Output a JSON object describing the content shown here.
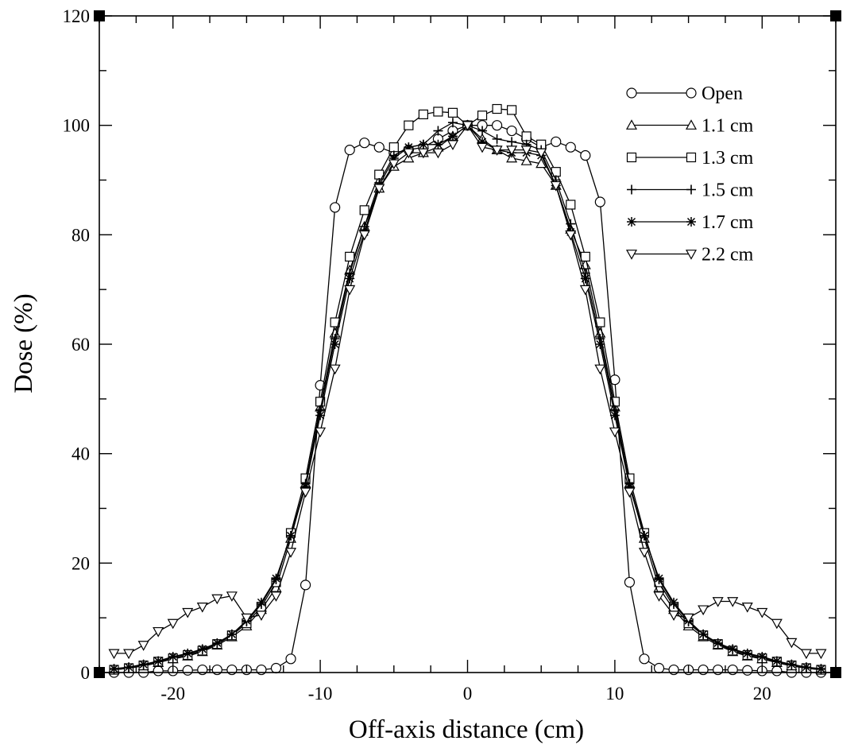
{
  "chart_data": {
    "type": "line",
    "title": "",
    "xlabel": "Off-axis distance (cm)",
    "ylabel": "Dose (%)",
    "xlim": [
      -25,
      25
    ],
    "ylim": [
      0,
      120
    ],
    "x_ticks": [
      -20,
      -10,
      0,
      10,
      20
    ],
    "x_tick_labels": [
      "-20",
      "-10",
      "0",
      "10",
      "20"
    ],
    "y_ticks": [
      0,
      20,
      40,
      60,
      80,
      100,
      120
    ],
    "y_tick_labels": [
      "0",
      "20",
      "40",
      "60",
      "80",
      "100",
      "120"
    ],
    "grid": false,
    "legend_position": "top-right",
    "series": [
      {
        "name": "Open",
        "marker": "circle",
        "x": [
          -24,
          -23,
          -22,
          -21,
          -20,
          -19,
          -18,
          -17,
          -16,
          -15,
          -14,
          -13,
          -12,
          -11,
          -10,
          -9,
          -8,
          -7,
          -6,
          -5,
          -4,
          -3,
          -2,
          -1,
          0,
          1,
          2,
          3,
          4,
          5,
          6,
          7,
          8,
          9,
          10,
          11,
          12,
          13,
          14,
          15,
          16,
          17,
          18,
          19,
          20,
          21,
          22,
          23,
          24
        ],
        "y": [
          0,
          0,
          0,
          0.3,
          0.3,
          0.4,
          0.5,
          0.5,
          0.5,
          0.5,
          0.5,
          0.8,
          2.5,
          16,
          52.5,
          85,
          95.5,
          96.8,
          96,
          95,
          95.5,
          96,
          97.5,
          99,
          100,
          100,
          100,
          99,
          97.5,
          96,
          97,
          96,
          94.5,
          86,
          53.5,
          16.5,
          2.5,
          0.8,
          0.5,
          0.5,
          0.5,
          0.5,
          0.5,
          0.4,
          0.3,
          0.3,
          0,
          0,
          0
        ]
      },
      {
        "name": "1.1 cm",
        "marker": "triangle-up",
        "x": [
          -24,
          -23,
          -22,
          -21,
          -20,
          -19,
          -18,
          -17,
          -16,
          -15,
          -14,
          -13,
          -12,
          -11,
          -10,
          -9,
          -8,
          -7,
          -6,
          -5,
          -4,
          -3,
          -2,
          -1,
          0,
          1,
          2,
          3,
          4,
          5,
          6,
          7,
          8,
          9,
          10,
          11,
          12,
          13,
          14,
          15,
          16,
          17,
          18,
          19,
          20,
          21,
          22,
          23,
          24
        ],
        "y": [
          0.5,
          0.8,
          1.2,
          1.8,
          2.5,
          3,
          3.8,
          5,
          6.5,
          8.5,
          11.5,
          15.5,
          24.5,
          34.5,
          48.5,
          62,
          73.5,
          81.5,
          88.5,
          92.5,
          94,
          95,
          96,
          98,
          100,
          97.5,
          95.5,
          94,
          93.5,
          93,
          89,
          81,
          74.5,
          62,
          48.5,
          34.5,
          24.5,
          15.5,
          11.5,
          8.5,
          6.5,
          5,
          3.8,
          3,
          2.5,
          1.8,
          1.2,
          0.8,
          0.5
        ]
      },
      {
        "name": "1.3 cm",
        "marker": "square",
        "x": [
          -24,
          -23,
          -22,
          -21,
          -20,
          -19,
          -18,
          -17,
          -16,
          -15,
          -14,
          -13,
          -12,
          -11,
          -10,
          -9,
          -8,
          -7,
          -6,
          -5,
          -4,
          -3,
          -2,
          -1,
          0,
          1,
          2,
          3,
          4,
          5,
          6,
          7,
          8,
          9,
          10,
          11,
          12,
          13,
          14,
          15,
          16,
          17,
          18,
          19,
          20,
          21,
          22,
          23,
          24
        ],
        "y": [
          0.5,
          0.8,
          1.3,
          2,
          2.6,
          3.2,
          4,
          5.2,
          6.8,
          9,
          12,
          16.5,
          25.5,
          35.5,
          49.5,
          64,
          76,
          84.5,
          91,
          96,
          100,
          102,
          102.5,
          102.3,
          100,
          101.8,
          103,
          102.8,
          98,
          96.5,
          91.5,
          85.5,
          76,
          64,
          49.5,
          35.5,
          25.5,
          16.5,
          12,
          9,
          6.8,
          5.2,
          4,
          3.2,
          2.6,
          2,
          1.3,
          0.8,
          0.5
        ]
      },
      {
        "name": "1.5 cm",
        "marker": "plus",
        "x": [
          -24,
          -23,
          -22,
          -21,
          -20,
          -19,
          -18,
          -17,
          -16,
          -15,
          -14,
          -13,
          -12,
          -11,
          -10,
          -9,
          -8,
          -7,
          -6,
          -5,
          -4,
          -3,
          -2,
          -1,
          0,
          1,
          2,
          3,
          4,
          5,
          6,
          7,
          8,
          9,
          10,
          11,
          12,
          13,
          14,
          15,
          16,
          17,
          18,
          19,
          20,
          21,
          22,
          23,
          24
        ],
        "y": [
          0.6,
          0.9,
          1.4,
          2,
          2.8,
          3.4,
          4.2,
          5.3,
          7,
          9.3,
          12.5,
          17,
          25,
          34.5,
          48,
          61,
          73,
          81.5,
          89.5,
          94.5,
          96,
          96.5,
          99,
          100.5,
          100,
          99,
          97.5,
          97,
          96.5,
          95.5,
          90,
          82,
          73,
          61,
          48,
          34.5,
          25,
          17,
          12.5,
          9.3,
          7,
          5.3,
          4.2,
          3.4,
          2.8,
          2,
          1.4,
          0.9,
          0.6
        ]
      },
      {
        "name": "1.7 cm",
        "marker": "asterisk",
        "x": [
          -24,
          -23,
          -22,
          -21,
          -20,
          -19,
          -18,
          -17,
          -16,
          -15,
          -14,
          -13,
          -12,
          -11,
          -10,
          -9,
          -8,
          -7,
          -6,
          -5,
          -4,
          -3,
          -2,
          -1,
          0,
          1,
          2,
          3,
          4,
          5,
          6,
          7,
          8,
          9,
          10,
          11,
          12,
          13,
          14,
          15,
          16,
          17,
          18,
          19,
          20,
          21,
          22,
          23,
          24
        ],
        "y": [
          0.7,
          1,
          1.5,
          2.1,
          2.9,
          3.5,
          4.3,
          5.4,
          7,
          9.5,
          12.8,
          17.2,
          25,
          34,
          47,
          60,
          72,
          80.5,
          89,
          94,
          96,
          96.5,
          96.5,
          98,
          100,
          97,
          95.5,
          95,
          95,
          94.5,
          89,
          80.5,
          72,
          60,
          47,
          34,
          25,
          17.2,
          12.8,
          9.5,
          7,
          5.4,
          4.3,
          3.5,
          2.9,
          2.1,
          1.5,
          1,
          0.7
        ]
      },
      {
        "name": "2.2 cm",
        "marker": "triangle-down",
        "x": [
          -24,
          -23,
          -22,
          -21,
          -20,
          -19,
          -18,
          -17,
          -16,
          -15,
          -14,
          -13,
          -12,
          -11,
          -10,
          -9,
          -8,
          -7,
          -6,
          -5,
          -4,
          -3,
          -2,
          -1,
          0,
          1,
          2,
          3,
          4,
          5,
          6,
          7,
          8,
          9,
          10,
          11,
          12,
          13,
          14,
          15,
          16,
          17,
          18,
          19,
          20,
          21,
          22,
          23,
          24
        ],
        "y": [
          3.5,
          3.5,
          5,
          7.5,
          9,
          11,
          12,
          13.5,
          14,
          10,
          10.5,
          14,
          22,
          33,
          44,
          55.5,
          70,
          80,
          88.5,
          93,
          95,
          95,
          95,
          96.5,
          100,
          96,
          95.5,
          95.5,
          95.5,
          95,
          89,
          80,
          70,
          55.5,
          44,
          33,
          22,
          14,
          10.5,
          10,
          11.5,
          13,
          13,
          12,
          11,
          9,
          5.5,
          3.5,
          3.5
        ]
      }
    ]
  }
}
